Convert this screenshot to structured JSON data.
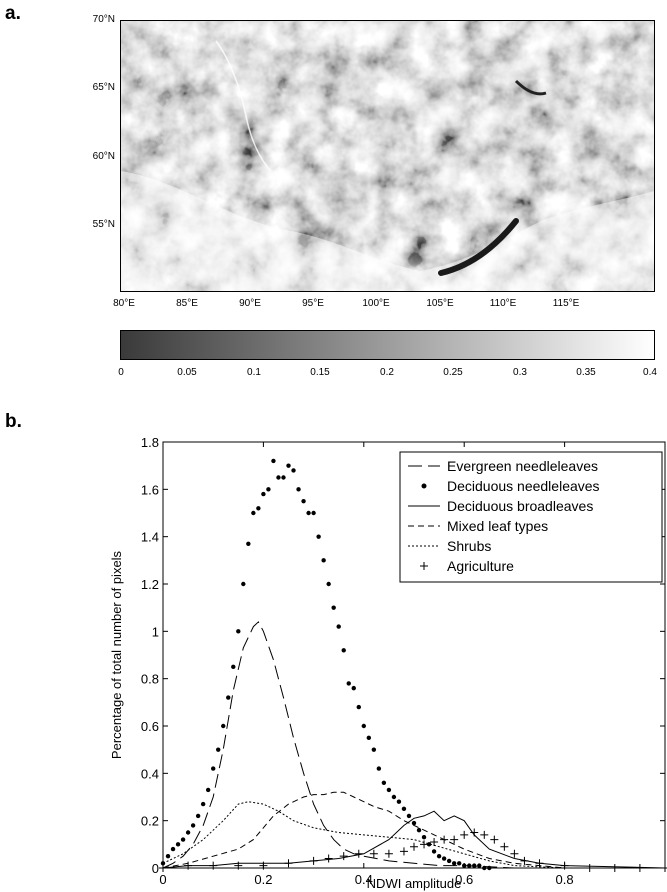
{
  "panels": {
    "a": "a.",
    "b": "b."
  },
  "map": {
    "lat_labels": [
      "70°N",
      "65°N",
      "60°N",
      "55°N"
    ],
    "lat_values": [
      70,
      65,
      60,
      55
    ],
    "lon_labels": [
      "80°E",
      "85°E",
      "90°E",
      "95°E",
      "100°E",
      "105°E",
      "110°E",
      "115°E"
    ],
    "lon_values": [
      80,
      85,
      90,
      95,
      100,
      105,
      110,
      115
    ],
    "lat_range": [
      51,
      70
    ],
    "lon_range": [
      80,
      120
    ],
    "colorbar_ticks": [
      "0",
      "0.05",
      "0.1",
      "0.15",
      "0.2",
      "0.25",
      "0.3",
      "0.35",
      "0.4"
    ],
    "colorbar_range": [
      0,
      0.4
    ],
    "colormap": [
      "#3a3a3a",
      "#ffffff"
    ]
  },
  "chart_data": {
    "type": "line",
    "xlabel": "NDWI amplitude",
    "ylabel": "Percentage of total number of pixels",
    "xlim": [
      0,
      1
    ],
    "ylim": [
      0,
      1.8
    ],
    "xticks": [
      "0",
      "0.2",
      "0.4",
      "0.6",
      "0.8"
    ],
    "xtick_values": [
      0,
      0.2,
      0.4,
      0.6,
      0.8
    ],
    "yticks": [
      "0",
      "0.2",
      "0.4",
      "0.6",
      "0.8",
      "1",
      "1.2",
      "1.4",
      "1.6",
      "1.8"
    ],
    "ytick_values": [
      0,
      0.2,
      0.4,
      0.6,
      0.8,
      1.0,
      1.2,
      1.4,
      1.6,
      1.8
    ],
    "legend_position": "top-right",
    "series": [
      {
        "name": "Evergreen needleleaves",
        "style": "long-dash",
        "x": [
          0,
          0.02,
          0.04,
          0.06,
          0.08,
          0.1,
          0.12,
          0.14,
          0.16,
          0.18,
          0.19,
          0.2,
          0.22,
          0.24,
          0.26,
          0.28,
          0.3,
          0.32,
          0.34,
          0.36,
          0.38,
          0.4,
          0.45,
          0.5,
          0.55,
          0.6,
          0.7,
          0.8,
          1.0
        ],
        "y": [
          0,
          0.02,
          0.05,
          0.1,
          0.18,
          0.3,
          0.5,
          0.75,
          0.93,
          1.02,
          1.04,
          1.0,
          0.88,
          0.72,
          0.55,
          0.4,
          0.27,
          0.18,
          0.12,
          0.08,
          0.06,
          0.05,
          0.03,
          0.02,
          0.01,
          0.01,
          0,
          0,
          0
        ]
      },
      {
        "name": "Deciduous needleleaves",
        "style": "dots",
        "x": [
          0,
          0.01,
          0.02,
          0.03,
          0.04,
          0.05,
          0.06,
          0.07,
          0.08,
          0.09,
          0.1,
          0.11,
          0.12,
          0.13,
          0.14,
          0.15,
          0.16,
          0.17,
          0.18,
          0.19,
          0.2,
          0.21,
          0.22,
          0.23,
          0.24,
          0.25,
          0.26,
          0.27,
          0.28,
          0.29,
          0.3,
          0.31,
          0.32,
          0.33,
          0.34,
          0.35,
          0.36,
          0.37,
          0.38,
          0.39,
          0.4,
          0.41,
          0.42,
          0.43,
          0.44,
          0.45,
          0.46,
          0.47,
          0.48,
          0.49,
          0.5,
          0.51,
          0.52,
          0.53,
          0.54,
          0.55,
          0.56,
          0.57,
          0.58,
          0.59,
          0.6,
          0.61,
          0.62,
          0.63,
          0.64,
          0.65
        ],
        "y": [
          0.02,
          0.05,
          0.08,
          0.1,
          0.12,
          0.15,
          0.18,
          0.22,
          0.27,
          0.33,
          0.42,
          0.5,
          0.6,
          0.72,
          0.85,
          1.0,
          1.2,
          1.37,
          1.5,
          1.52,
          1.58,
          1.6,
          1.72,
          1.65,
          1.65,
          1.7,
          1.68,
          1.6,
          1.55,
          1.5,
          1.5,
          1.4,
          1.3,
          1.2,
          1.1,
          1.02,
          0.92,
          0.78,
          0.76,
          0.68,
          0.6,
          0.55,
          0.5,
          0.42,
          0.36,
          0.33,
          0.3,
          0.28,
          0.25,
          0.22,
          0.19,
          0.16,
          0.13,
          0.1,
          0.07,
          0.05,
          0.04,
          0.03,
          0.02,
          0.02,
          0.01,
          0.01,
          0.01,
          0.01,
          0,
          0
        ]
      },
      {
        "name": "Deciduous broadleaves",
        "style": "solid",
        "x": [
          0,
          0.05,
          0.1,
          0.15,
          0.2,
          0.25,
          0.3,
          0.35,
          0.4,
          0.45,
          0.48,
          0.5,
          0.52,
          0.54,
          0.56,
          0.58,
          0.6,
          0.62,
          0.65,
          0.7,
          0.75,
          0.8,
          1.0
        ],
        "y": [
          0,
          0.01,
          0.01,
          0.02,
          0.02,
          0.02,
          0.03,
          0.04,
          0.06,
          0.12,
          0.18,
          0.21,
          0.22,
          0.24,
          0.2,
          0.22,
          0.2,
          0.14,
          0.08,
          0.04,
          0.02,
          0.01,
          0
        ]
      },
      {
        "name": "Mixed leaf types",
        "style": "dash",
        "x": [
          0,
          0.05,
          0.1,
          0.15,
          0.18,
          0.2,
          0.22,
          0.25,
          0.28,
          0.3,
          0.32,
          0.34,
          0.36,
          0.38,
          0.4,
          0.42,
          0.45,
          0.48,
          0.5,
          0.55,
          0.6,
          0.65,
          0.7,
          0.75,
          0.8,
          1.0
        ],
        "y": [
          0,
          0.02,
          0.05,
          0.08,
          0.12,
          0.17,
          0.22,
          0.27,
          0.3,
          0.31,
          0.31,
          0.32,
          0.32,
          0.3,
          0.28,
          0.26,
          0.24,
          0.2,
          0.18,
          0.13,
          0.08,
          0.04,
          0.02,
          0.01,
          0,
          0
        ]
      },
      {
        "name": "Shrubs",
        "style": "dotted",
        "x": [
          0,
          0.04,
          0.08,
          0.12,
          0.15,
          0.17,
          0.2,
          0.23,
          0.26,
          0.3,
          0.35,
          0.4,
          0.45,
          0.5,
          0.55,
          0.6,
          0.65,
          0.7,
          0.8,
          1.0
        ],
        "y": [
          0.02,
          0.06,
          0.12,
          0.2,
          0.27,
          0.28,
          0.27,
          0.24,
          0.2,
          0.17,
          0.15,
          0.14,
          0.13,
          0.12,
          0.09,
          0.06,
          0.03,
          0.01,
          0,
          0
        ]
      },
      {
        "name": "Agriculture",
        "style": "plus",
        "x": [
          0,
          0.05,
          0.1,
          0.15,
          0.2,
          0.25,
          0.3,
          0.33,
          0.36,
          0.39,
          0.42,
          0.45,
          0.48,
          0.5,
          0.52,
          0.54,
          0.56,
          0.58,
          0.6,
          0.62,
          0.64,
          0.66,
          0.68,
          0.7,
          0.72,
          0.75,
          0.8,
          0.85,
          0.9,
          0.95,
          1.0
        ],
        "y": [
          0,
          0.01,
          0.01,
          0.01,
          0.01,
          0.02,
          0.03,
          0.04,
          0.05,
          0.06,
          0.06,
          0.06,
          0.07,
          0.09,
          0.1,
          0.11,
          0.12,
          0.12,
          0.14,
          0.15,
          0.14,
          0.12,
          0.09,
          0.06,
          0.03,
          0.02,
          0.01,
          0,
          0,
          0,
          0
        ]
      }
    ]
  }
}
